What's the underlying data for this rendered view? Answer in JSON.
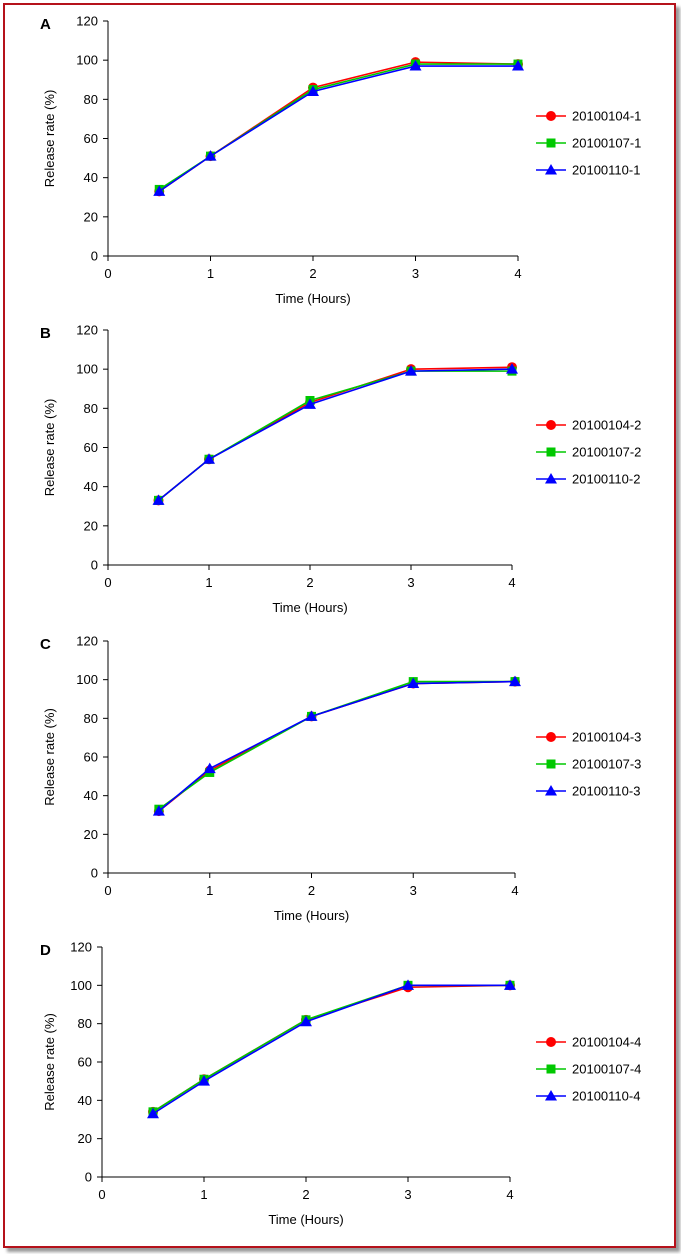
{
  "chart_data": [
    {
      "type": "line",
      "panel_label": "A",
      "xlabel": "Time (Hours)",
      "ylabel": "Release rate (%)",
      "xlim": [
        0,
        4
      ],
      "ylim": [
        0,
        120
      ],
      "x_ticks": [
        0,
        1,
        2,
        3,
        4
      ],
      "y_ticks": [
        0,
        20,
        40,
        60,
        80,
        100,
        120
      ],
      "grid": false,
      "legend_position": "right",
      "x": [
        0.5,
        1,
        2,
        3,
        4
      ],
      "series": [
        {
          "name": "20100104-1",
          "color": "#ff0000",
          "marker": "circle",
          "values": [
            33,
            51,
            86,
            99,
            98
          ]
        },
        {
          "name": "20100107-1",
          "color": "#00c800",
          "marker": "square",
          "values": [
            34,
            51,
            85,
            98,
            98
          ]
        },
        {
          "name": "20100110-1",
          "color": "#0000ff",
          "marker": "triangle",
          "values": [
            33,
            51,
            84,
            97,
            97
          ]
        }
      ]
    },
    {
      "type": "line",
      "panel_label": "B",
      "xlabel": "Time (Hours)",
      "ylabel": "Release rate (%)",
      "xlim": [
        0,
        4
      ],
      "ylim": [
        0,
        120
      ],
      "x_ticks": [
        0,
        1,
        2,
        3,
        4
      ],
      "y_ticks": [
        0,
        20,
        40,
        60,
        80,
        100,
        120
      ],
      "grid": false,
      "legend_position": "right",
      "x": [
        0.5,
        1,
        2,
        3,
        4
      ],
      "series": [
        {
          "name": "20100104-2",
          "color": "#ff0000",
          "marker": "circle",
          "values": [
            33,
            54,
            83,
            100,
            101
          ]
        },
        {
          "name": "20100107-2",
          "color": "#00c800",
          "marker": "square",
          "values": [
            33,
            54,
            84,
            99,
            99
          ]
        },
        {
          "name": "20100110-2",
          "color": "#0000ff",
          "marker": "triangle",
          "values": [
            33,
            54,
            82,
            99,
            100
          ]
        }
      ]
    },
    {
      "type": "line",
      "panel_label": "C",
      "xlabel": "Time (Hours)",
      "ylabel": "Release rate (%)",
      "xlim": [
        0,
        4
      ],
      "ylim": [
        0,
        120
      ],
      "x_ticks": [
        0,
        1,
        2,
        3,
        4
      ],
      "y_ticks": [
        0,
        20,
        40,
        60,
        80,
        100,
        120
      ],
      "grid": false,
      "legend_position": "right",
      "x": [
        0.5,
        1,
        2,
        3,
        4
      ],
      "series": [
        {
          "name": "20100104-3",
          "color": "#ff0000",
          "marker": "circle",
          "values": [
            32,
            53,
            81,
            98,
            99
          ]
        },
        {
          "name": "20100107-3",
          "color": "#00c800",
          "marker": "square",
          "values": [
            33,
            52,
            81,
            99,
            99
          ]
        },
        {
          "name": "20100110-3",
          "color": "#0000ff",
          "marker": "triangle",
          "values": [
            32,
            54,
            81,
            98,
            99
          ]
        }
      ]
    },
    {
      "type": "line",
      "panel_label": "D",
      "xlabel": "Time (Hours)",
      "ylabel": "Release rate (%)",
      "xlim": [
        0,
        4
      ],
      "ylim": [
        0,
        120
      ],
      "x_ticks": [
        0,
        1,
        2,
        3,
        4
      ],
      "y_ticks": [
        0,
        20,
        40,
        60,
        80,
        100,
        120
      ],
      "grid": false,
      "legend_position": "right",
      "x": [
        0.5,
        1,
        2,
        3,
        4
      ],
      "series": [
        {
          "name": "20100104-4",
          "color": "#ff0000",
          "marker": "circle",
          "values": [
            34,
            51,
            82,
            99,
            100
          ]
        },
        {
          "name": "20100107-4",
          "color": "#00c800",
          "marker": "square",
          "values": [
            34,
            51,
            82,
            100,
            100
          ]
        },
        {
          "name": "20100110-4",
          "color": "#0000ff",
          "marker": "triangle",
          "values": [
            33,
            50,
            81,
            100,
            100
          ]
        }
      ]
    }
  ]
}
